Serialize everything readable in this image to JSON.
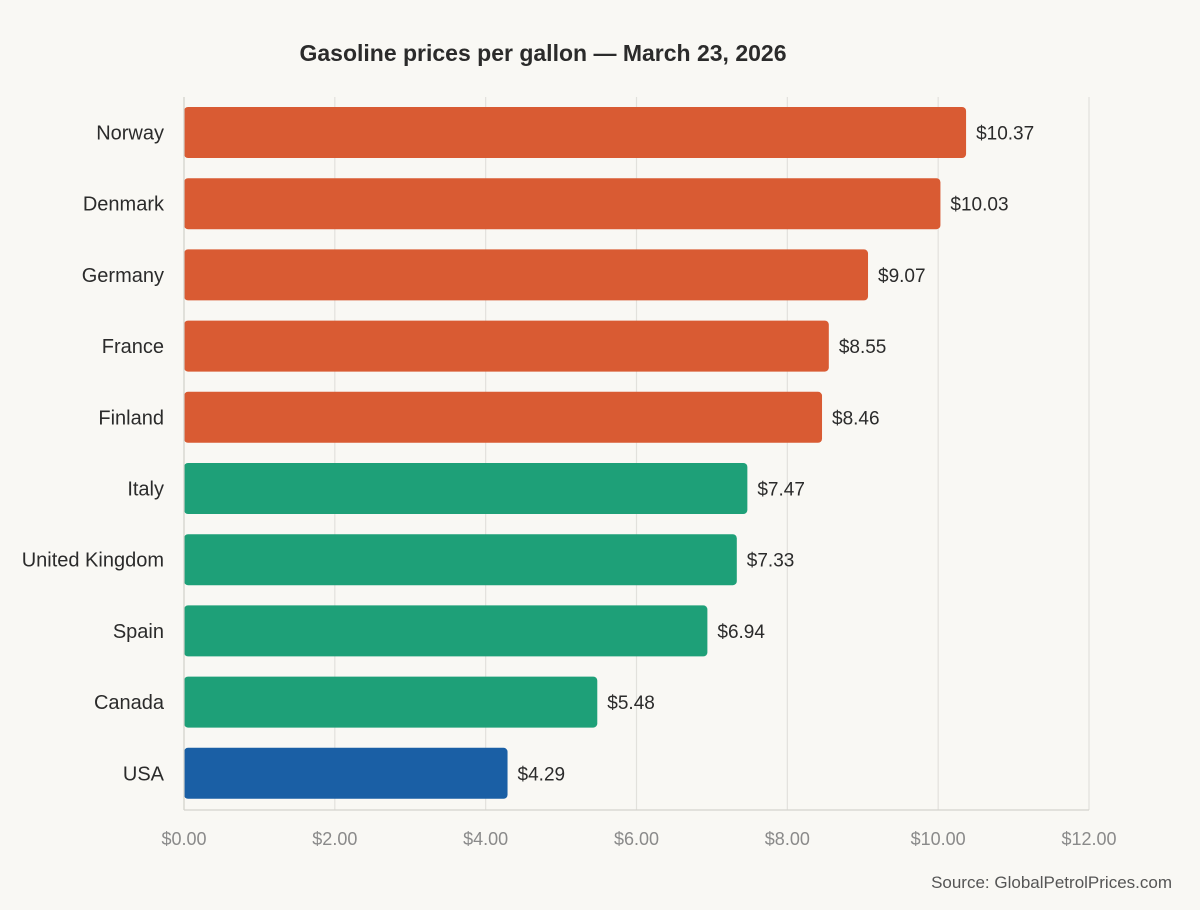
{
  "chart_data": {
    "type": "bar",
    "orientation": "horizontal",
    "title": "Gasoline prices per gallon — March 23, 2026",
    "categories": [
      "Norway",
      "Denmark",
      "Germany",
      "France",
      "Finland",
      "Italy",
      "United Kingdom",
      "Spain",
      "Canada",
      "USA"
    ],
    "values": [
      10.37,
      10.03,
      9.07,
      8.55,
      8.46,
      7.47,
      7.33,
      6.94,
      5.48,
      4.29
    ],
    "value_labels": [
      "$10.37",
      "$10.03",
      "$9.07",
      "$8.55",
      "$8.46",
      "$7.47",
      "$7.33",
      "$6.94",
      "$5.48",
      "$4.29"
    ],
    "bar_colors": [
      "#d95b33",
      "#d95b33",
      "#d95b33",
      "#d95b33",
      "#d95b33",
      "#1ea078",
      "#1ea078",
      "#1ea078",
      "#1ea078",
      "#1a5fa5"
    ],
    "xlim": [
      0,
      12
    ],
    "x_ticks": [
      0,
      2,
      4,
      6,
      8,
      10,
      12
    ],
    "x_tick_labels": [
      "$0.00",
      "$2.00",
      "$4.00",
      "$6.00",
      "$8.00",
      "$10.00",
      "$12.00"
    ],
    "xlabel": "",
    "ylabel": "",
    "grid": "vertical",
    "legend": "none",
    "source": "Source: GlobalPetrolPrices.com"
  }
}
